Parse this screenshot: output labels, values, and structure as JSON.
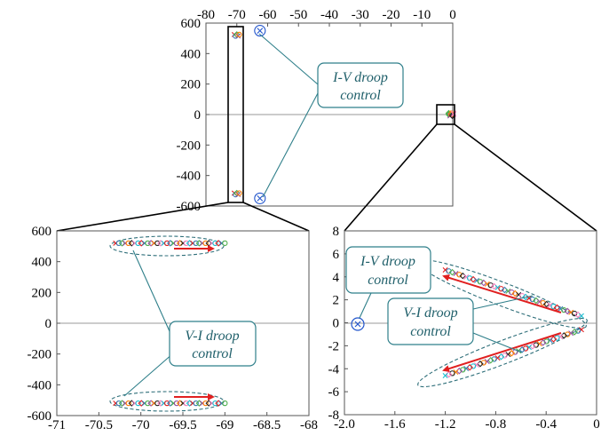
{
  "colors": {
    "frame": "#555555",
    "callout_text": "#1f5f6a",
    "callout_border": "#2f7f8a",
    "arrow": "#e02020",
    "marker_palette": [
      "#e41a1c",
      "#377eb8",
      "#4daf4a",
      "#984ea3",
      "#ff7f00",
      "#222222",
      "#f781bf",
      "#17becf"
    ]
  },
  "callouts": {
    "iv_top": [
      "I-V droop",
      "control"
    ],
    "vi_left": [
      "V-I droop",
      "control"
    ],
    "iv_right": [
      "I-V droop",
      "control"
    ],
    "vi_right": [
      "V-I droop",
      "control"
    ]
  },
  "chart_data": [
    {
      "type": "scatter",
      "panel": "top",
      "title": "",
      "xlabel": "",
      "ylabel": "",
      "xlim": [
        -80,
        0
      ],
      "ylim": [
        -600,
        600
      ],
      "xticks": [
        "-80",
        "-70",
        "-60",
        "-50",
        "-40",
        "-30",
        "-20",
        "-10",
        "0"
      ],
      "yticks": [
        "600",
        "400",
        "200",
        "0",
        "-200",
        "-400",
        "-600"
      ],
      "x_axis_position": "top",
      "grid": false,
      "series": [
        {
          "points": [
            [
              -70,
              520
            ],
            [
              -70,
              -520
            ]
          ],
          "marker": "x-cluster"
        },
        {
          "points": [
            [
              -62.5,
              550
            ],
            [
              -62.5,
              -550
            ]
          ],
          "marker": "circled-x"
        },
        {
          "points": [
            [
              -0.5,
              4
            ],
            [
              -0.5,
              -4
            ]
          ],
          "marker": "cluster"
        }
      ],
      "zoom_boxes": [
        {
          "xlim": [
            -71.5,
            -68
          ],
          "ylim": [
            -600,
            600
          ]
        },
        {
          "xlim": [
            -2,
            1
          ],
          "ylim": [
            -45,
            45
          ]
        }
      ]
    },
    {
      "type": "scatter",
      "panel": "bottom-left",
      "title": "",
      "xlabel": "",
      "ylabel": "",
      "xlim": [
        -71,
        -68
      ],
      "ylim": [
        -600,
        600
      ],
      "xticks": [
        "-71",
        "-70.5",
        "-70",
        "-69.5",
        "-69",
        "-68.5",
        "-68"
      ],
      "yticks": [
        "600",
        "400",
        "200",
        "0",
        "-200",
        "-400",
        "-600"
      ],
      "grid": false,
      "series": [
        {
          "x_range": [
            -70.3,
            -69.0
          ],
          "y": 520,
          "count": 35,
          "direction": "increasing-x"
        },
        {
          "x_range": [
            -70.3,
            -69.0
          ],
          "y": -520,
          "count": 35,
          "direction": "increasing-x"
        }
      ]
    },
    {
      "type": "scatter",
      "panel": "bottom-right",
      "title": "",
      "xlabel": "",
      "ylabel": "",
      "xlim": [
        -2.0,
        0
      ],
      "ylim": [
        -8,
        8
      ],
      "xticks": [
        "-2.0",
        "-1.6",
        "-1.2",
        "-0.8",
        "-0.4",
        "0"
      ],
      "yticks": [
        "8",
        "6",
        "4",
        "2",
        "0",
        "-2",
        "-4",
        "-6",
        "-8"
      ],
      "grid": false,
      "series": [
        {
          "from": [
            -1.2,
            4.6
          ],
          "to": [
            -0.12,
            0.6
          ],
          "count": 40,
          "direction": "toward-upper-left"
        },
        {
          "from": [
            -0.12,
            -0.6
          ],
          "to": [
            -1.2,
            -4.6
          ],
          "count": 40,
          "direction": "toward-lower-left"
        },
        {
          "points": [
            [
              -1.86,
              0
            ]
          ],
          "marker": "circled-x"
        }
      ]
    }
  ]
}
